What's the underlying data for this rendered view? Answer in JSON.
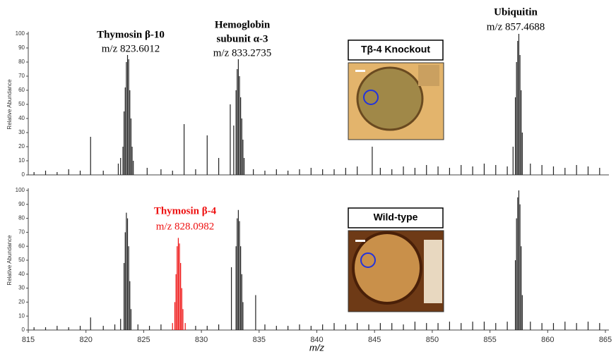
{
  "chart_data": [
    {
      "type": "spectrum",
      "y_label": "Relative Abundance",
      "xlim": [
        815,
        865
      ],
      "ylim": [
        0,
        100
      ],
      "yticks": [
        0,
        10,
        20,
        30,
        40,
        50,
        60,
        70,
        80,
        90,
        100
      ],
      "inset_label": "Tβ-4 Knockout",
      "annotations": [
        {
          "text": "Thymosin β-10",
          "bold": true,
          "color": "#000000"
        },
        {
          "text": "m/z 823.6012",
          "bold": false,
          "color": "#000000"
        },
        {
          "text": "Hemoglobin",
          "bold": true,
          "color": "#000000"
        },
        {
          "text": "subunit α-3",
          "bold": true,
          "color": "#000000"
        },
        {
          "text": "m/z 833.2735",
          "bold": false,
          "color": "#000000"
        },
        {
          "text": "Ubiquitin",
          "bold": true,
          "color": "#000000"
        },
        {
          "text": "m/z 857.4688",
          "bold": false,
          "color": "#000000"
        }
      ],
      "series": [
        {
          "color": "#222222",
          "x": [
            815.5,
            816.5,
            817.5,
            818.5,
            819.5,
            820.4,
            821.5,
            822.8,
            823.0,
            823.2,
            823.3,
            823.4,
            823.5,
            823.6,
            823.7,
            823.8,
            823.9,
            824.0,
            824.1,
            825.3,
            826.5,
            827.5,
            828.5,
            829.5,
            830.5,
            831.5,
            832.5,
            832.8,
            833.0,
            833.1,
            833.2,
            833.3,
            833.4,
            833.5,
            833.6,
            833.7,
            834.5,
            835.5,
            836.5,
            837.5,
            838.5,
            839.5,
            840.5,
            841.5,
            842.5,
            843.5,
            844.8,
            845.5,
            846.5,
            847.5,
            848.5,
            849.5,
            850.5,
            851.5,
            852.5,
            853.5,
            854.5,
            855.5,
            856.5,
            857.0,
            857.2,
            857.3,
            857.4,
            857.5,
            857.6,
            857.7,
            857.8,
            858.5,
            859.5,
            860.5,
            861.5,
            862.5,
            863.5,
            864.5
          ],
          "values": [
            2,
            3,
            2,
            4,
            3,
            27,
            3,
            8,
            12,
            20,
            45,
            62,
            80,
            85,
            82,
            60,
            40,
            20,
            10,
            5,
            4,
            3,
            36,
            4,
            28,
            12,
            50,
            35,
            60,
            75,
            82,
            70,
            55,
            40,
            25,
            12,
            4,
            3,
            4,
            3,
            4,
            5,
            4,
            4,
            5,
            6,
            20,
            5,
            4,
            6,
            5,
            7,
            6,
            5,
            7,
            6,
            8,
            7,
            6,
            20,
            55,
            80,
            95,
            100,
            85,
            60,
            30,
            8,
            7,
            6,
            5,
            7,
            6,
            5
          ]
        }
      ]
    },
    {
      "type": "spectrum",
      "y_label": "Relative Abundance",
      "x_label": "m/z",
      "xlim": [
        815,
        865
      ],
      "ylim": [
        0,
        100
      ],
      "xticks": [
        815,
        820,
        825,
        830,
        835,
        840,
        845,
        850,
        855,
        860,
        865
      ],
      "yticks": [
        0,
        10,
        20,
        30,
        40,
        50,
        60,
        70,
        80,
        90,
        100
      ],
      "inset_label": "Wild-type",
      "annotations": [
        {
          "text": "Thymosin β-4",
          "bold": true,
          "color": "#ee1111"
        },
        {
          "text": "m/z 828.0982",
          "bold": false,
          "color": "#ee1111"
        }
      ],
      "series": [
        {
          "color": "#222222",
          "x": [
            815.5,
            816.5,
            817.5,
            818.5,
            819.5,
            820.4,
            821.5,
            822.5,
            823.0,
            823.3,
            823.4,
            823.5,
            823.6,
            823.7,
            823.8,
            823.9,
            824.5,
            825.5,
            826.5,
            829.5,
            830.5,
            831.5,
            832.6,
            833.0,
            833.1,
            833.2,
            833.3,
            833.4,
            833.5,
            833.6,
            834.7,
            835.5,
            836.5,
            837.5,
            838.5,
            839.5,
            840.5,
            841.5,
            842.5,
            843.5,
            844.5,
            845.5,
            846.5,
            847.5,
            848.5,
            849.5,
            850.5,
            851.5,
            852.5,
            853.5,
            854.5,
            855.5,
            856.5,
            857.2,
            857.3,
            857.4,
            857.5,
            857.6,
            857.7,
            857.8,
            858.5,
            859.5,
            860.5,
            861.5,
            862.5,
            863.5,
            864.5
          ],
          "values": [
            2,
            2,
            3,
            2,
            3,
            9,
            3,
            4,
            8,
            48,
            70,
            84,
            80,
            60,
            35,
            15,
            4,
            3,
            4,
            3,
            3,
            4,
            45,
            60,
            80,
            86,
            78,
            60,
            40,
            20,
            25,
            4,
            3,
            3,
            4,
            3,
            4,
            5,
            4,
            5,
            4,
            5,
            5,
            4,
            6,
            5,
            5,
            6,
            5,
            6,
            6,
            5,
            6,
            50,
            80,
            95,
            100,
            90,
            60,
            25,
            6,
            5,
            5,
            6,
            5,
            6,
            5
          ]
        },
        {
          "color": "#ee1111",
          "x": [
            827.5,
            827.7,
            827.8,
            827.9,
            828.0,
            828.1,
            828.2,
            828.3,
            828.4,
            828.6
          ],
          "values": [
            5,
            20,
            40,
            60,
            66,
            62,
            48,
            30,
            15,
            5
          ]
        }
      ]
    }
  ]
}
